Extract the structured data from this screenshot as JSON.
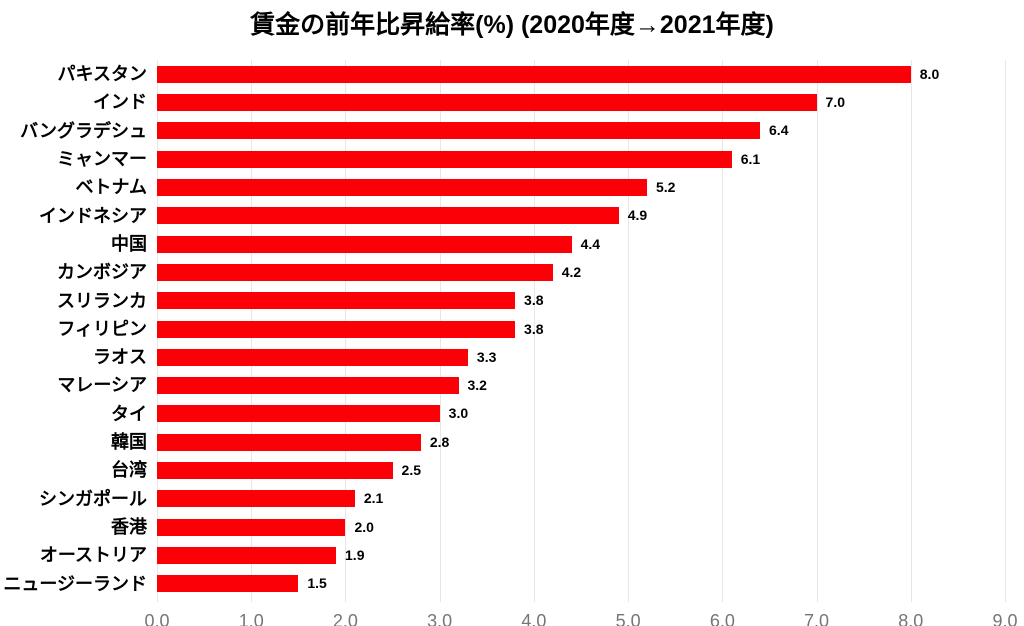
{
  "chart_data": {
    "type": "bar",
    "orientation": "horizontal",
    "title": "賃金の前年比昇給率(%) (2020年度→2021年度)",
    "categories": [
      "パキスタン",
      "インド",
      "バングラデシュ",
      "ミャンマー",
      "ベトナム",
      "インドネシア",
      "中国",
      "カンボジア",
      "スリランカ",
      "フィリピン",
      "ラオス",
      "マレーシア",
      "タイ",
      "韓国",
      "台湾",
      "シンガポール",
      "香港",
      "オーストリア",
      "ニュージーランド"
    ],
    "values": [
      8.0,
      7.0,
      6.4,
      6.1,
      5.2,
      4.9,
      4.4,
      4.2,
      3.8,
      3.8,
      3.3,
      3.2,
      3.0,
      2.8,
      2.5,
      2.1,
      2.0,
      1.9,
      1.5
    ],
    "data_labels": [
      "8.0",
      "7.0",
      "6.4",
      "6.1",
      "5.2",
      "4.9",
      "4.4",
      "4.2",
      "3.8",
      "3.8",
      "3.3",
      "3.2",
      "3.0",
      "2.8",
      "2.5",
      "2.1",
      "2.0",
      "1.9",
      "1.5"
    ],
    "xlabel": "",
    "ylabel": "",
    "xlim": [
      0.0,
      9.0
    ],
    "x_ticks": [
      "0.0",
      "1.0",
      "2.0",
      "3.0",
      "4.0",
      "5.0",
      "6.0",
      "7.0",
      "8.0",
      "9.0"
    ],
    "grid": true,
    "legend": "none",
    "colors": {
      "bar": "#fb0007",
      "gridline": "#e7e7e7",
      "axis_text": "#767676",
      "label_text": "#000000",
      "background": "#ffffff"
    }
  }
}
